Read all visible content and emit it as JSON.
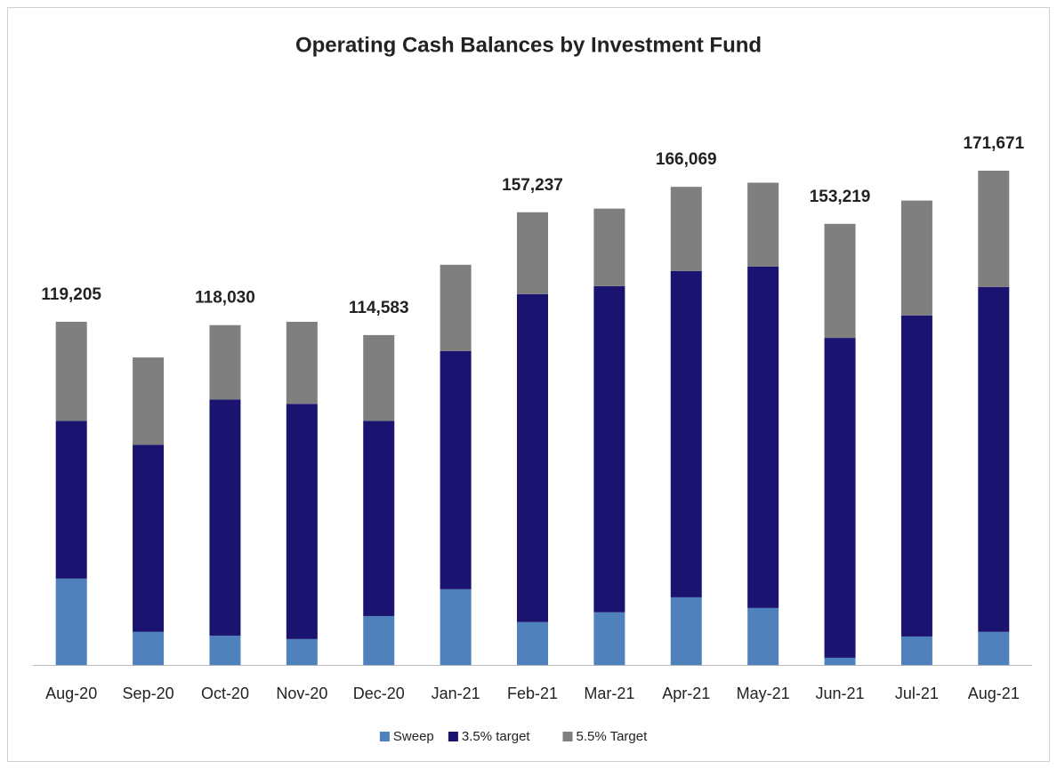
{
  "chart_data": {
    "type": "stacked_bar",
    "title": "Operating Cash Balances by Investment Fund",
    "categories": [
      "Aug-20",
      "Sep-20",
      "Oct-20",
      "Nov-20",
      "Dec-20",
      "Jan-21",
      "Feb-21",
      "Mar-21",
      "Apr-21",
      "May-21",
      "Jun-21",
      "Jul-21",
      "Aug-21"
    ],
    "series": [
      {
        "name": "Sweep",
        "color": "#4f81bd",
        "values": [
          30000,
          11500,
          10200,
          9000,
          17000,
          26300,
          14900,
          18300,
          23500,
          19800,
          2500,
          9900,
          11500
        ]
      },
      {
        "name": "3.5% target",
        "color": "#1b1370",
        "values": [
          54800,
          65000,
          82000,
          81700,
          67800,
          82700,
          113900,
          113300,
          113300,
          118600,
          111100,
          111500,
          119800
        ]
      },
      {
        "name": "5.5% Target",
        "color": "#7f7f7f",
        "values": [
          34405,
          30300,
          25830,
          28500,
          29783,
          30000,
          28437,
          26900,
          29269,
          29100,
          39619,
          39900,
          40371
        ]
      }
    ],
    "totals": [
      119205,
      null,
      118030,
      null,
      114583,
      null,
      157237,
      null,
      166069,
      null,
      153219,
      null,
      171671
    ],
    "total_labels": [
      "119,205",
      null,
      "118,030",
      null,
      "114,583",
      null,
      "157,237",
      null,
      "166,069",
      null,
      "153,219",
      null,
      "171,671"
    ],
    "legend": "bottom"
  }
}
